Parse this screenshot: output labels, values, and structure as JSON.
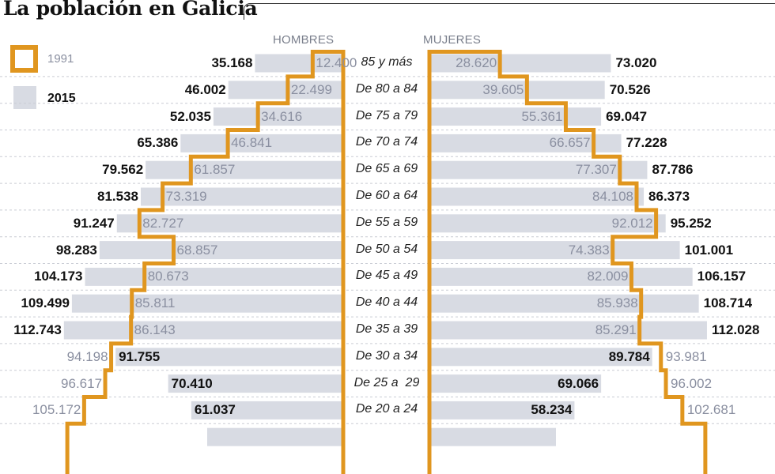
{
  "title": "La población en Galicia",
  "legend": [
    {
      "label": "1991",
      "style": "outline",
      "color": "#E0961F"
    },
    {
      "label": "2015",
      "style": "fill",
      "color": "#D8DBE3"
    }
  ],
  "headers": {
    "men": "HOMBRES",
    "women": "MUJERES"
  },
  "colors": {
    "outline": "#E0961F",
    "bar": "#D8DBE3",
    "text_1991": "#8A8FA0",
    "text_2015": "#111111",
    "grid": "#c9ccd4"
  },
  "chart_data": {
    "type": "bar",
    "subtype": "population-pyramid",
    "title": "La población en Galicia",
    "categories": [
      "85 y más",
      "De 80 a 84",
      "De 75 a 79",
      "De 70 a 74",
      "De 65 a 69",
      "De 60 a 64",
      "De 55 a 59",
      "De 50 a 54",
      "De 45 a 49",
      "De 40 a 44",
      "De 35 a 39",
      "De 30 a 34",
      "De 25 a  29",
      "De 20 a 24"
    ],
    "series": [
      {
        "name": "Hombres 2015",
        "values": [
          35168,
          46002,
          52035,
          65386,
          79562,
          81538,
          91247,
          98283,
          104173,
          109499,
          112743,
          91755,
          70410,
          61037
        ]
      },
      {
        "name": "Hombres 1991",
        "values": [
          12400,
          22499,
          34616,
          46841,
          61857,
          73319,
          82727,
          68857,
          80673,
          85811,
          86143,
          94198,
          96617,
          105172
        ]
      },
      {
        "name": "Mujeres 2015",
        "values": [
          73020,
          70526,
          69047,
          77228,
          87786,
          86373,
          95252,
          101001,
          106157,
          108714,
          112028,
          89784,
          69066,
          58234
        ]
      },
      {
        "name": "Mujeres 1991",
        "values": [
          28620,
          39605,
          55361,
          66657,
          77307,
          84108,
          92012,
          74383,
          82009,
          85938,
          85291,
          93981,
          96002,
          102681
        ]
      }
    ],
    "labels": {
      "men_2015": [
        "35.168",
        "46.002",
        "52.035",
        "65.386",
        "79.562",
        "81.538",
        "91.247",
        "98.283",
        "104.173",
        "109.499",
        "112.743",
        "91.755",
        "70.410",
        "61.037"
      ],
      "men_1991": [
        "12.400",
        "22.499",
        "34.616",
        "46.841",
        "61.857",
        "73.319",
        "82.727",
        "68.857",
        "80.673",
        "85.811",
        "86.143",
        "94.198",
        "96.617",
        "105.172"
      ],
      "women_2015": [
        "73.020",
        "70.526",
        "69.047",
        "77.228",
        "87.786",
        "86.373",
        "95.252",
        "101.001",
        "106.157",
        "108.714",
        "112.028",
        "89.784",
        "69.066",
        "58.234"
      ],
      "women_1991": [
        "28.620",
        "39.605",
        "55.361",
        "66.657",
        "77.307",
        "84.108",
        "92.012",
        "74.383",
        "82.009",
        "85.938",
        "85.291",
        "93.981",
        "96.002",
        "102.681"
      ]
    },
    "xlabel": "",
    "ylabel": "",
    "legend_position": "top-left",
    "grid": "dashed horizontal row separators"
  }
}
